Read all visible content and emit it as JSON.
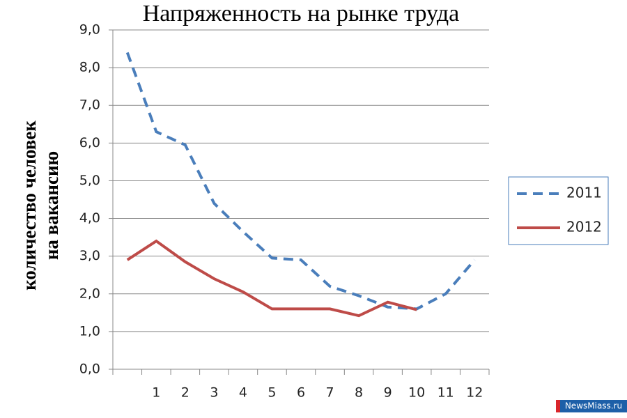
{
  "chart_data": {
    "type": "line",
    "title": "Напряженность на рынке труда",
    "ylabel": [
      "количество человек",
      "на вакансию"
    ],
    "categories": [
      null,
      "1",
      "2",
      "3",
      "4",
      "5",
      "6",
      "7",
      "8",
      "9",
      "10",
      "11",
      "12"
    ],
    "series": [
      {
        "name": "2011",
        "color": "#4a7ebb",
        "line_style": "dashed",
        "values": [
          8.4,
          6.3,
          5.95,
          4.4,
          3.65,
          2.95,
          2.9,
          2.2,
          1.95,
          1.65,
          1.6,
          2.0,
          2.9
        ]
      },
      {
        "name": "2012",
        "color": "#be4b48",
        "line_style": "solid",
        "values": [
          2.9,
          3.4,
          2.85,
          2.4,
          2.05,
          1.6,
          1.6,
          1.6,
          1.42,
          1.78,
          1.58,
          null,
          null
        ]
      }
    ],
    "ylim": [
      0,
      9
    ],
    "yticks": [
      {
        "value": 0,
        "label": "0,0"
      },
      {
        "value": 1,
        "label": "1,0"
      },
      {
        "value": 2,
        "label": "2,0"
      },
      {
        "value": 3,
        "label": "3,0"
      },
      {
        "value": 4,
        "label": "4,0"
      },
      {
        "value": 5,
        "label": "5,0"
      },
      {
        "value": 6,
        "label": "6,0"
      },
      {
        "value": 7,
        "label": "7,0"
      },
      {
        "value": 8,
        "label": "8,0"
      },
      {
        "value": 9,
        "label": "9,0"
      }
    ],
    "grid": true,
    "legend": "right",
    "source": "NewsMiass.ru"
  }
}
